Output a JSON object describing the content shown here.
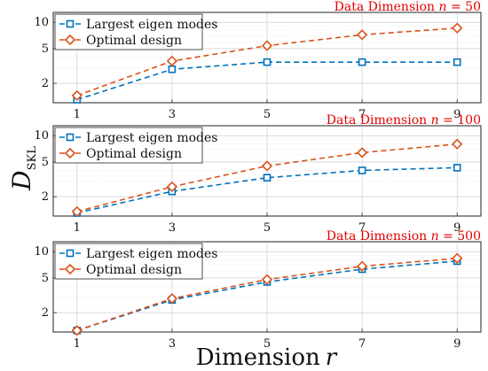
{
  "chart_data": [
    {
      "type": "line",
      "title": "Data Dimension n = 50",
      "title_prefix": "Data Dimension",
      "title_var": "n",
      "title_value": "= 50",
      "y_scale": "log",
      "ylim": [
        1.2,
        13
      ],
      "xlim": [
        0.5,
        9.5
      ],
      "grid": true,
      "legend": "top-left",
      "x": [
        1,
        3,
        5,
        7,
        9
      ],
      "x_ticks": [
        "1",
        "3",
        "5",
        "7",
        "9"
      ],
      "y_ticks": [
        "2",
        "5",
        "10"
      ],
      "series": [
        {
          "name": "Largest eigen modes",
          "marker": "square",
          "color": "#0072bd",
          "values": [
            1.3,
            2.9,
            3.5,
            3.5,
            3.5
          ]
        },
        {
          "name": "Optimal design",
          "marker": "diamond",
          "color": "#d95319",
          "values": [
            1.45,
            3.6,
            5.4,
            7.2,
            8.6
          ]
        }
      ]
    },
    {
      "type": "line",
      "title": "Data Dimension n = 100",
      "title_prefix": "Data Dimension",
      "title_var": "n",
      "title_value": "= 100",
      "y_scale": "log",
      "ylim": [
        1.2,
        13
      ],
      "xlim": [
        0.5,
        9.5
      ],
      "grid": true,
      "legend": "top-left",
      "x": [
        1,
        3,
        5,
        7,
        9
      ],
      "x_ticks": [
        "1",
        "3",
        "5",
        "7",
        "9"
      ],
      "y_ticks": [
        "2",
        "5",
        "10"
      ],
      "series": [
        {
          "name": "Largest eigen modes",
          "marker": "square",
          "color": "#0072bd",
          "values": [
            1.3,
            2.3,
            3.3,
            4.0,
            4.3
          ]
        },
        {
          "name": "Optimal design",
          "marker": "diamond",
          "color": "#d95319",
          "values": [
            1.35,
            2.6,
            4.5,
            6.4,
            8.0
          ]
        }
      ]
    },
    {
      "type": "line",
      "title": "Data Dimension n = 500",
      "title_prefix": "Data Dimension",
      "title_var": "n",
      "title_value": "= 500",
      "y_scale": "log",
      "ylim": [
        1.2,
        13
      ],
      "xlim": [
        0.5,
        9.5
      ],
      "grid": true,
      "legend": "top-left",
      "x": [
        1,
        3,
        5,
        7,
        9
      ],
      "x_ticks": [
        "1",
        "3",
        "5",
        "7",
        "9"
      ],
      "y_ticks": [
        "2",
        "5",
        "10"
      ],
      "series": [
        {
          "name": "Largest eigen modes",
          "marker": "square",
          "color": "#0072bd",
          "values": [
            1.25,
            2.8,
            4.5,
            6.3,
            7.8
          ]
        },
        {
          "name": "Optimal design",
          "marker": "diamond",
          "color": "#d95319",
          "values": [
            1.25,
            2.9,
            4.8,
            6.8,
            8.4
          ]
        }
      ]
    }
  ],
  "shared": {
    "ylabel_main": "D",
    "ylabel_sub": "SKL",
    "xlabel_text": "Dimension",
    "xlabel_var": "r"
  }
}
